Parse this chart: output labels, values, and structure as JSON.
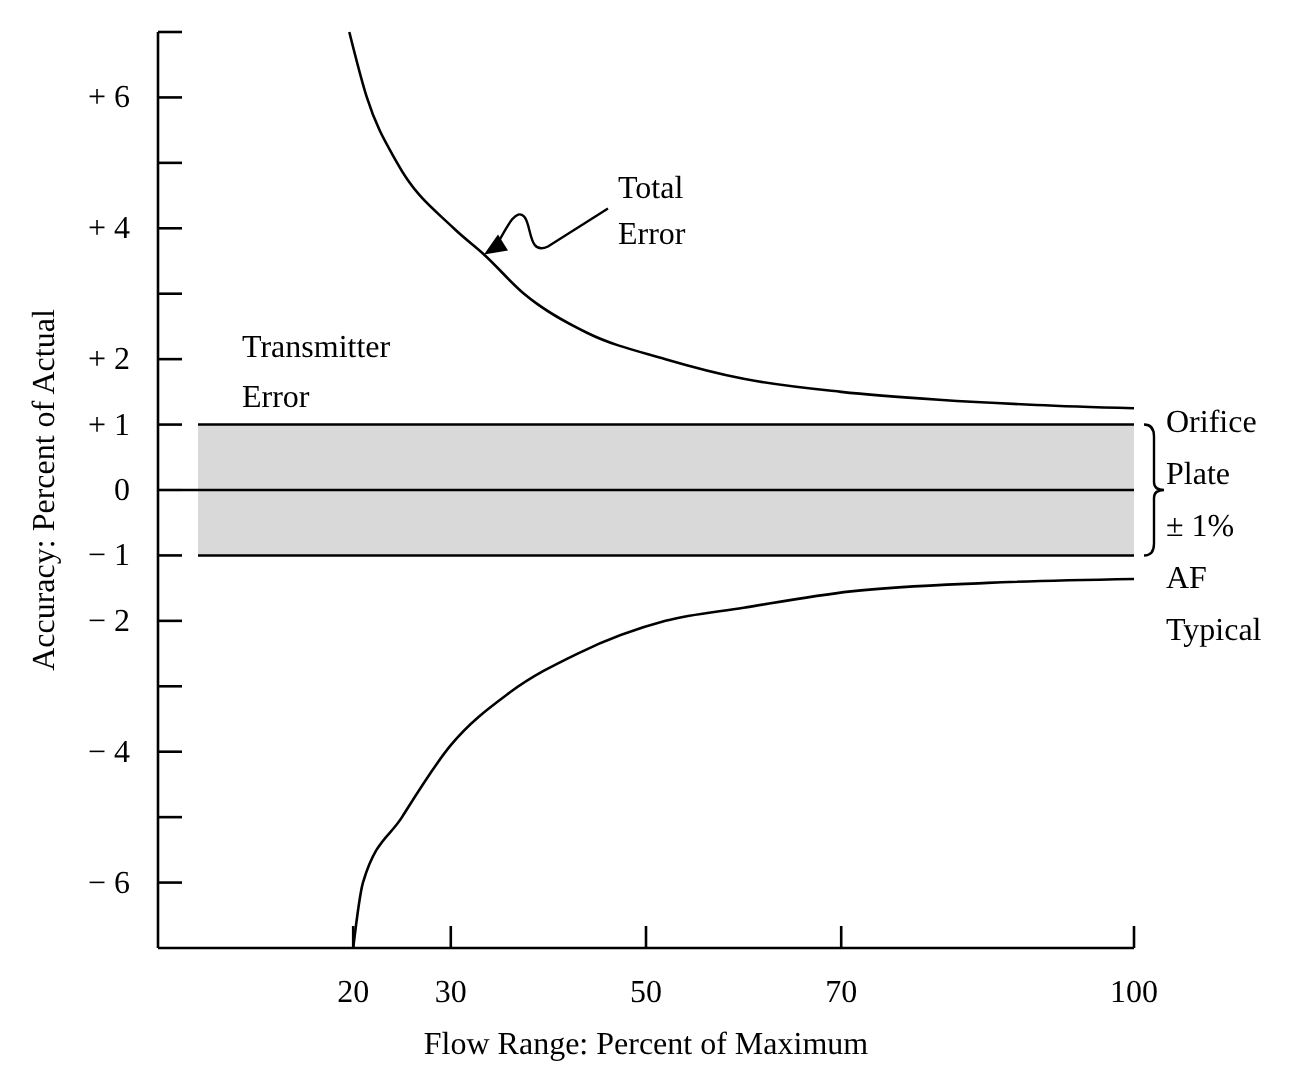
{
  "chart_data": {
    "type": "line",
    "xlabel": "Flow Range: Percent of Maximum",
    "ylabel": "Accuracy: Percent of Actual",
    "xlim": [
      0,
      100
    ],
    "ylim": [
      -7,
      7
    ],
    "xticks": [
      20,
      30,
      50,
      70,
      100
    ],
    "yticks": [
      {
        "value": 7,
        "label": null
      },
      {
        "value": 6,
        "label": "+ 6"
      },
      {
        "value": 5,
        "label": null
      },
      {
        "value": 4,
        "label": "+ 4"
      },
      {
        "value": 3,
        "label": null
      },
      {
        "value": 2,
        "label": "+ 2"
      },
      {
        "value": 1,
        "label": "+ 1"
      },
      0,
      {
        "value": -1,
        "label": "− 1"
      },
      {
        "value": -2,
        "label": "− 2"
      },
      {
        "value": -3,
        "label": null
      },
      {
        "value": -4,
        "label": "− 4"
      },
      {
        "value": -5,
        "label": null
      },
      {
        "value": -6,
        "label": "− 6"
      }
    ],
    "series": [
      {
        "color": "#000000",
        "x": [
          19.6,
          21.4,
          24.5,
          30.3,
          33.4,
          37.5,
          44,
          52,
          60,
          70,
          80,
          90,
          100
        ],
        "values": [
          7,
          6,
          5,
          4,
          3.6,
          3,
          2.4,
          2.0,
          1.7,
          1.5,
          1.38,
          1.3,
          1.25
        ]
      },
      {
        "color": "#000000",
        "x": [
          20,
          21,
          25,
          30,
          36,
          43,
          52,
          60,
          71,
          85,
          100
        ],
        "values": [
          -7,
          -6,
          -5,
          -3.9,
          -3.1,
          -2.5,
          -2.0,
          -1.8,
          -1.55,
          -1.42,
          -1.36
        ]
      }
    ],
    "bands": [
      {
        "axis": "y",
        "from": -1,
        "to": 1,
        "label": "Transmitter\nError",
        "color": "#d9d9d9"
      }
    ],
    "ref_lines": [
      {
        "axis": "y",
        "value": 0,
        "label": null
      }
    ],
    "annotations": [
      {
        "text": "Total\nError",
        "x": 33.4,
        "y": 3.6
      },
      {
        "text": "Orifice\nPlate\n± 1%\nAF\nTypical",
        "x": 100,
        "y": 0
      }
    ],
    "grid": false,
    "marker": "none",
    "line_style": "solid"
  }
}
